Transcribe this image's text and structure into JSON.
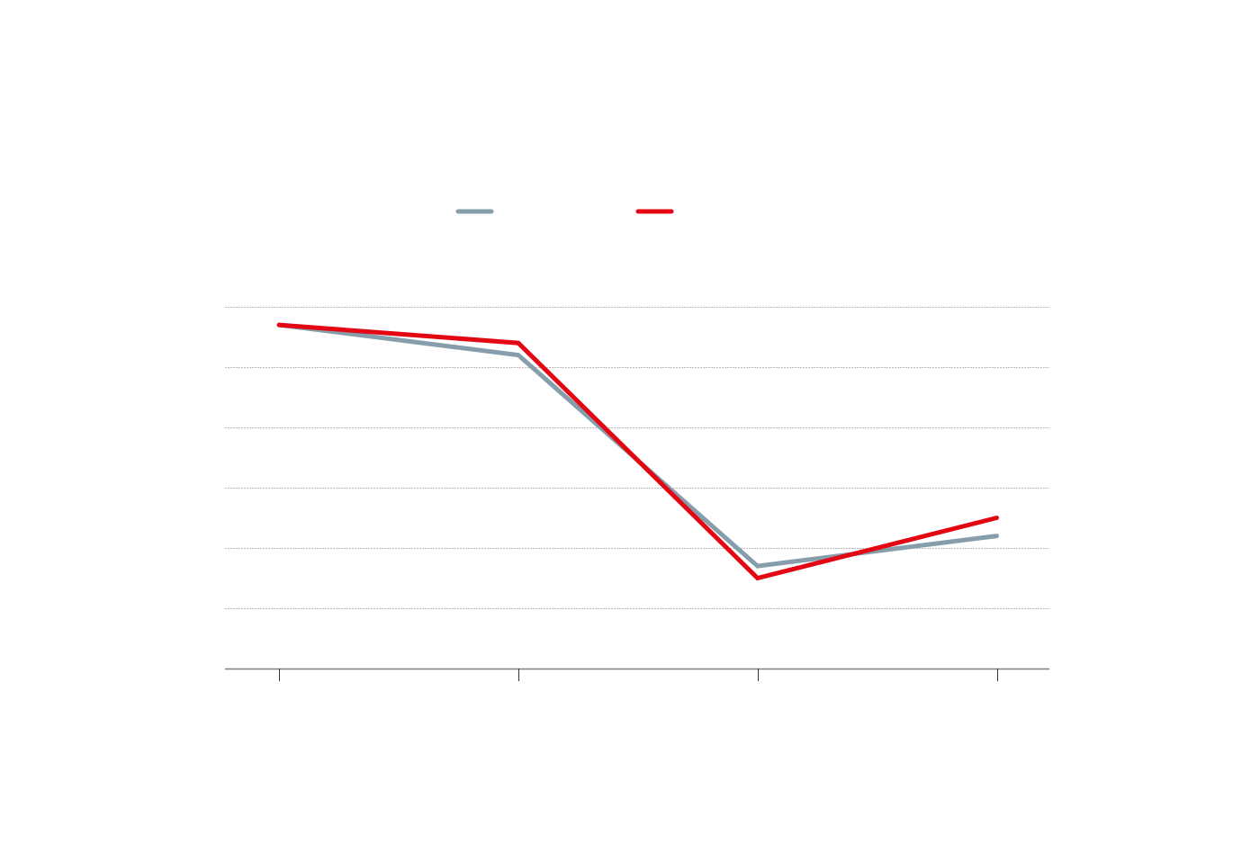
{
  "chart_data": {
    "type": "line",
    "title": "",
    "xlabel": "",
    "ylabel": "",
    "x": [
      0,
      1,
      2,
      3
    ],
    "categories": [
      "",
      "",
      "",
      ""
    ],
    "xlim": [
      -0.226,
      3.22
    ],
    "ylim": [
      0,
      6
    ],
    "yticks": [
      1,
      2,
      3,
      4,
      5,
      6
    ],
    "grid": true,
    "legend_position": "top-center",
    "series": [
      {
        "name": "",
        "color": "#869dab",
        "values": [
          5.7,
          5.2,
          1.7,
          2.2
        ]
      },
      {
        "name": "",
        "color": "#e30613",
        "values": [
          5.7,
          5.4,
          1.5,
          2.5
        ]
      }
    ]
  }
}
